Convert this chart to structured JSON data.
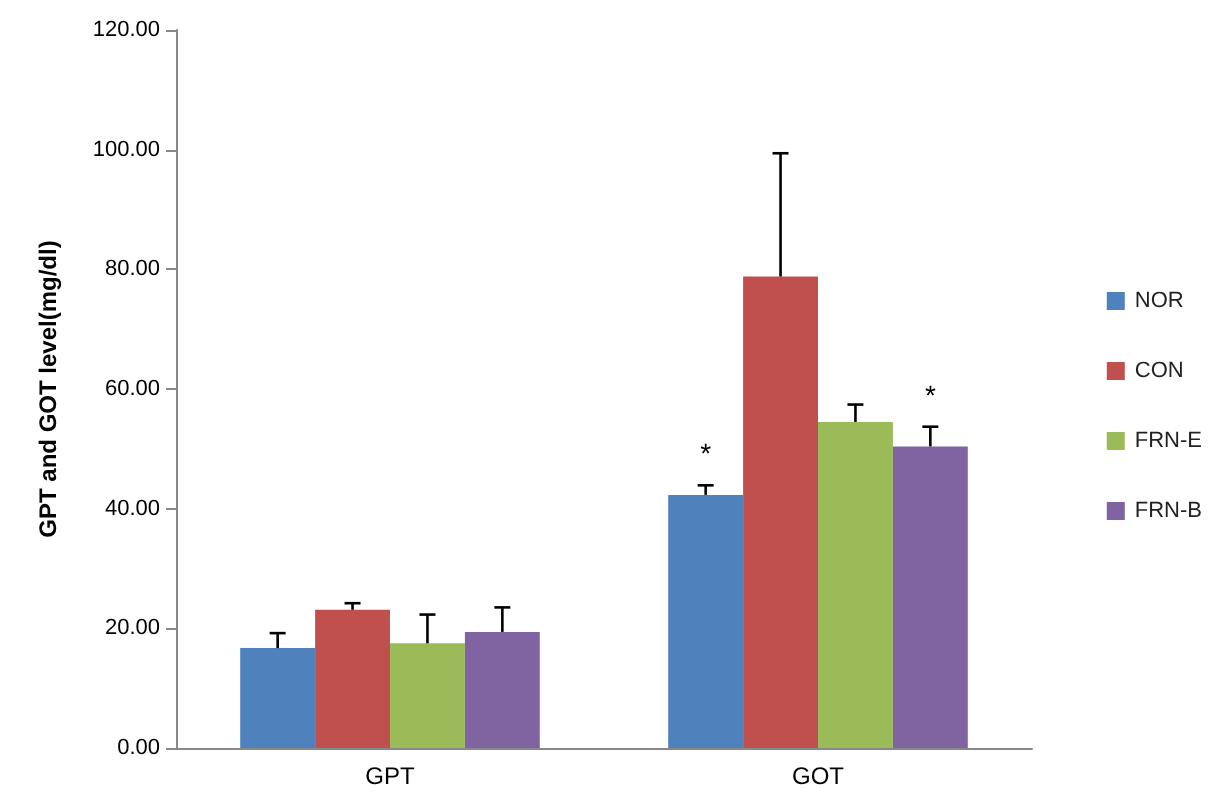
{
  "chart_data": {
    "type": "bar",
    "ylabel": "GPT and GOT level(mg/dl)",
    "categories": [
      "GPT",
      "GOT"
    ],
    "series": [
      {
        "name": "NOR",
        "color": "#4f81bd",
        "values": [
          16.7,
          42.3
        ],
        "errors": [
          2.5,
          1.6
        ],
        "value_labels": [
          null,
          "*"
        ]
      },
      {
        "name": "CON",
        "color": "#c0504d",
        "values": [
          23.1,
          78.8
        ],
        "errors": [
          1.1,
          20.6
        ]
      },
      {
        "name": "FRN-E",
        "color": "#9bbb59",
        "values": [
          17.5,
          54.5
        ],
        "errors": [
          4.8,
          2.9
        ]
      },
      {
        "name": "FRN-B",
        "color": "#8064a2",
        "values": [
          19.4,
          50.4
        ],
        "errors": [
          4.1,
          3.3
        ],
        "value_labels": [
          null,
          "*"
        ]
      }
    ],
    "ylim": [
      0,
      120
    ],
    "yticks": [
      {
        "value": 0,
        "label": "0.00"
      },
      {
        "value": 20,
        "label": "20.00"
      },
      {
        "value": 40,
        "label": "40.00"
      },
      {
        "value": 60,
        "label": "60.00"
      },
      {
        "value": 80,
        "label": "80.00"
      },
      {
        "value": 100,
        "label": "100.00"
      },
      {
        "value": 120,
        "label": "120.00"
      }
    ],
    "legend": "right",
    "grid": false
  }
}
